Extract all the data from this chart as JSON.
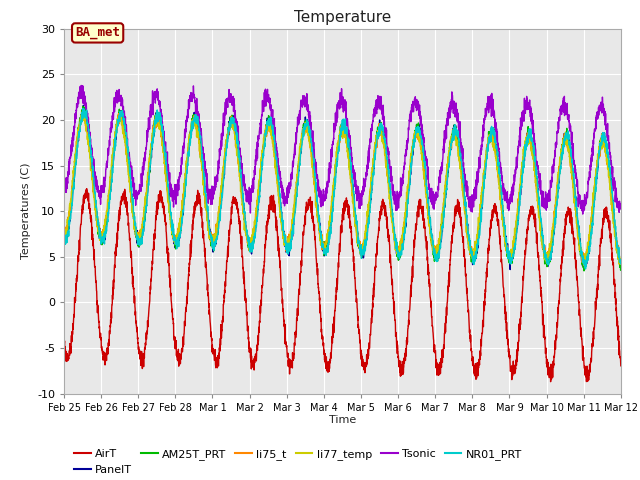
{
  "title": "Temperature",
  "xlabel": "Time",
  "ylabel": "Temperatures (C)",
  "ylim": [
    -10,
    30
  ],
  "background_color": "#e8e8e8",
  "figure_background": "#ffffff",
  "grid_color": "#ffffff",
  "annotation_text": "BA_met",
  "annotation_box_color": "#ffffcc",
  "annotation_text_color": "#990000",
  "series": [
    {
      "label": "AirT",
      "color": "#cc0000",
      "lw": 1.0
    },
    {
      "label": "PanelT",
      "color": "#000099",
      "lw": 1.0
    },
    {
      "label": "AM25T_PRT",
      "color": "#00bb00",
      "lw": 1.0
    },
    {
      "label": "li75_t",
      "color": "#ff8800",
      "lw": 1.0
    },
    {
      "label": "li77_temp",
      "color": "#cccc00",
      "lw": 1.0
    },
    {
      "label": "Tsonic",
      "color": "#9900cc",
      "lw": 1.0
    },
    {
      "label": "NR01_PRT",
      "color": "#00cccc",
      "lw": 1.0
    }
  ],
  "tick_labels": [
    "Feb 25",
    "Feb 26",
    "Feb 27",
    "Feb 28",
    "Mar 1",
    "Mar 2",
    "Mar 3",
    "Mar 4",
    "Mar 5",
    "Mar 6",
    "Mar 7",
    "Mar 8",
    "Mar 9",
    "Mar 10",
    "Mar 11",
    "Mar 12"
  ],
  "tick_positions": [
    0,
    1,
    2,
    3,
    4,
    5,
    6,
    7,
    8,
    9,
    10,
    11,
    12,
    13,
    14,
    15
  ],
  "yticks": [
    -10,
    -5,
    0,
    5,
    10,
    15,
    20,
    25,
    30
  ]
}
